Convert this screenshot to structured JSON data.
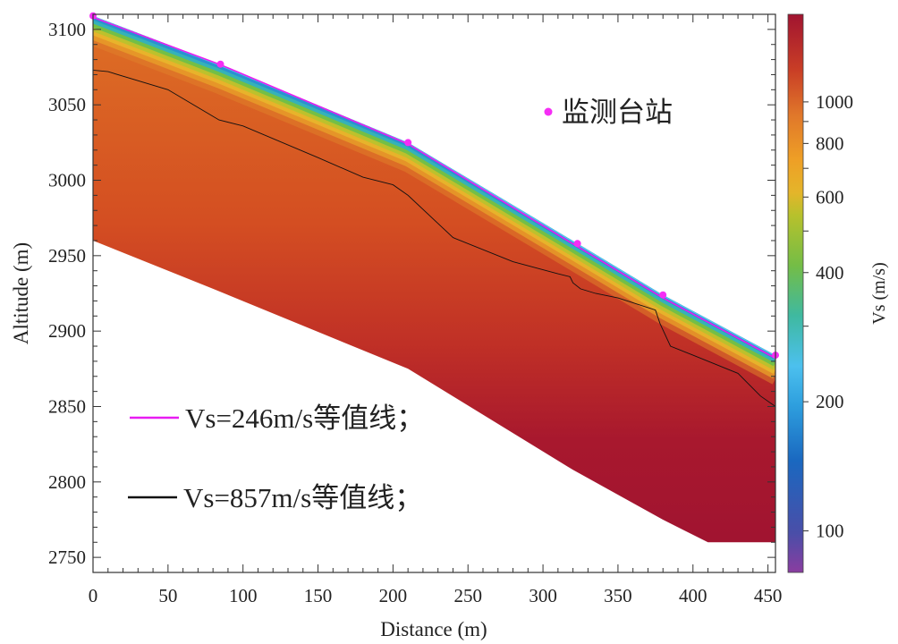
{
  "chart_data": {
    "type": "heatmap",
    "title": "",
    "xlabel": "Distance (m)",
    "ylabel": "Altitude (m)",
    "xlim": [
      0,
      455
    ],
    "ylim": [
      2740,
      3110
    ],
    "x_ticks": [
      "0",
      "50",
      "100",
      "150",
      "200",
      "250",
      "300",
      "350",
      "400",
      "450"
    ],
    "y_ticks": [
      "2750",
      "2800",
      "2850",
      "2900",
      "2950",
      "3000",
      "3050",
      "3100"
    ],
    "x_tick_values": [
      0,
      50,
      100,
      150,
      200,
      250,
      300,
      350,
      400,
      450
    ],
    "y_tick_values": [
      2750,
      2800,
      2850,
      2900,
      2950,
      3000,
      3050,
      3100
    ],
    "surface_profile": {
      "x": [
        0,
        84,
        210,
        323,
        380,
        455
      ],
      "y": [
        3109,
        3077,
        3025,
        2958,
        2924,
        2884
      ]
    },
    "bottom_profile": {
      "x": [
        0,
        80,
        210,
        320,
        380,
        410,
        455
      ],
      "y": [
        2960,
        2928,
        2875,
        2808,
        2775,
        2760,
        2760
      ]
    },
    "contour_246": {
      "label": "Vs=246m/s等值线；",
      "color": "#e81cf2",
      "x": [
        0,
        84,
        210,
        323,
        380,
        455
      ],
      "y": [
        3108,
        3077,
        3024,
        2956,
        2922,
        2882
      ]
    },
    "contour_857": {
      "label": "Vs=857m/s等值线；",
      "color": "#111111",
      "x": [
        0,
        10,
        50,
        84,
        100,
        150,
        180,
        200,
        210,
        240,
        280,
        310,
        318,
        320,
        325,
        335,
        350,
        375,
        378,
        385,
        400,
        430,
        445,
        455
      ],
      "y": [
        3073,
        3072,
        3060,
        3040,
        3036,
        3015,
        3002,
        2997,
        2990,
        2962,
        2946,
        2938,
        2936,
        2932,
        2928,
        2925,
        2922,
        2914,
        2905,
        2890,
        2884,
        2872,
        2857,
        2850
      ]
    },
    "stations": {
      "label": "监测台站",
      "color": "#f52ef5",
      "x": [
        0,
        85,
        210,
        323,
        380,
        455
      ],
      "y": [
        3109,
        3077,
        3025,
        2958,
        2924,
        2884
      ]
    },
    "colorbar": {
      "label": "Vs (m/s)",
      "scale": "log",
      "range": [
        80,
        1600
      ],
      "ticks": [
        "100",
        "200",
        "400",
        "600",
        "800",
        "1000"
      ],
      "tick_values": [
        100,
        200,
        400,
        600,
        800,
        1000
      ]
    }
  }
}
